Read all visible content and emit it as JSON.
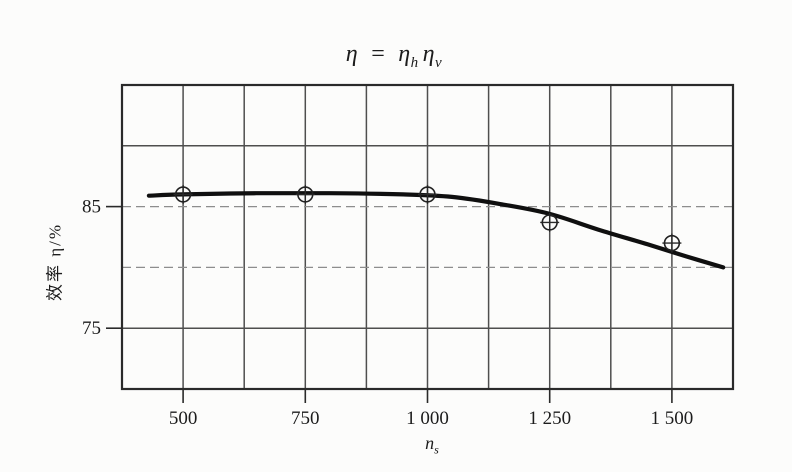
{
  "figure": {
    "background": "#fcfcfb",
    "ink_color": "#1c1c1c",
    "border_color": "#2a2a2a",
    "grid_color": "#4e4e4e",
    "faint_grid_color": "#8d8d8d",
    "curve_color": "#0f0f0f"
  },
  "chart_data": {
    "type": "line",
    "title": "η = η_h η_v",
    "title_parts": {
      "lhs": "η",
      "eq": "=",
      "rhs1_base": "η",
      "rhs1_sub": "h",
      "rhs2_base": "η",
      "rhs2_sub": "v"
    },
    "xlabel": "n_s",
    "xlabel_parts": {
      "base": "n",
      "sub": "s"
    },
    "ylabel": "效率 η/%",
    "x_axis": {
      "min": 375,
      "max": 1625,
      "grid_step": 125
    },
    "y_axis": {
      "min": 70,
      "max": 95,
      "grid_step": 5
    },
    "grid": true,
    "legend": "none",
    "x_ticks": [
      {
        "value": 500,
        "label": "500"
      },
      {
        "value": 750,
        "label": "750"
      },
      {
        "value": 1000,
        "label": "1 000"
      },
      {
        "value": 1250,
        "label": "1 250"
      },
      {
        "value": 1500,
        "label": "1 500"
      }
    ],
    "y_ticks": [
      {
        "value": 85,
        "label": "85"
      },
      {
        "value": 75,
        "label": "75"
      }
    ],
    "marker": "circle-cross",
    "points": [
      {
        "ns": 500,
        "eta": 86.0
      },
      {
        "ns": 750,
        "eta": 86.0
      },
      {
        "ns": 1000,
        "eta": 86.0
      },
      {
        "ns": 1250,
        "eta": 83.7
      },
      {
        "ns": 1500,
        "eta": 82.0
      }
    ],
    "curve": [
      [
        430,
        85.9
      ],
      [
        500,
        86.0
      ],
      [
        650,
        86.1
      ],
      [
        800,
        86.1
      ],
      [
        950,
        86.0
      ],
      [
        1050,
        85.8
      ],
      [
        1150,
        85.2
      ],
      [
        1250,
        84.4
      ],
      [
        1350,
        83.1
      ],
      [
        1450,
        81.9
      ],
      [
        1530,
        80.9
      ],
      [
        1605,
        80.0
      ]
    ]
  }
}
